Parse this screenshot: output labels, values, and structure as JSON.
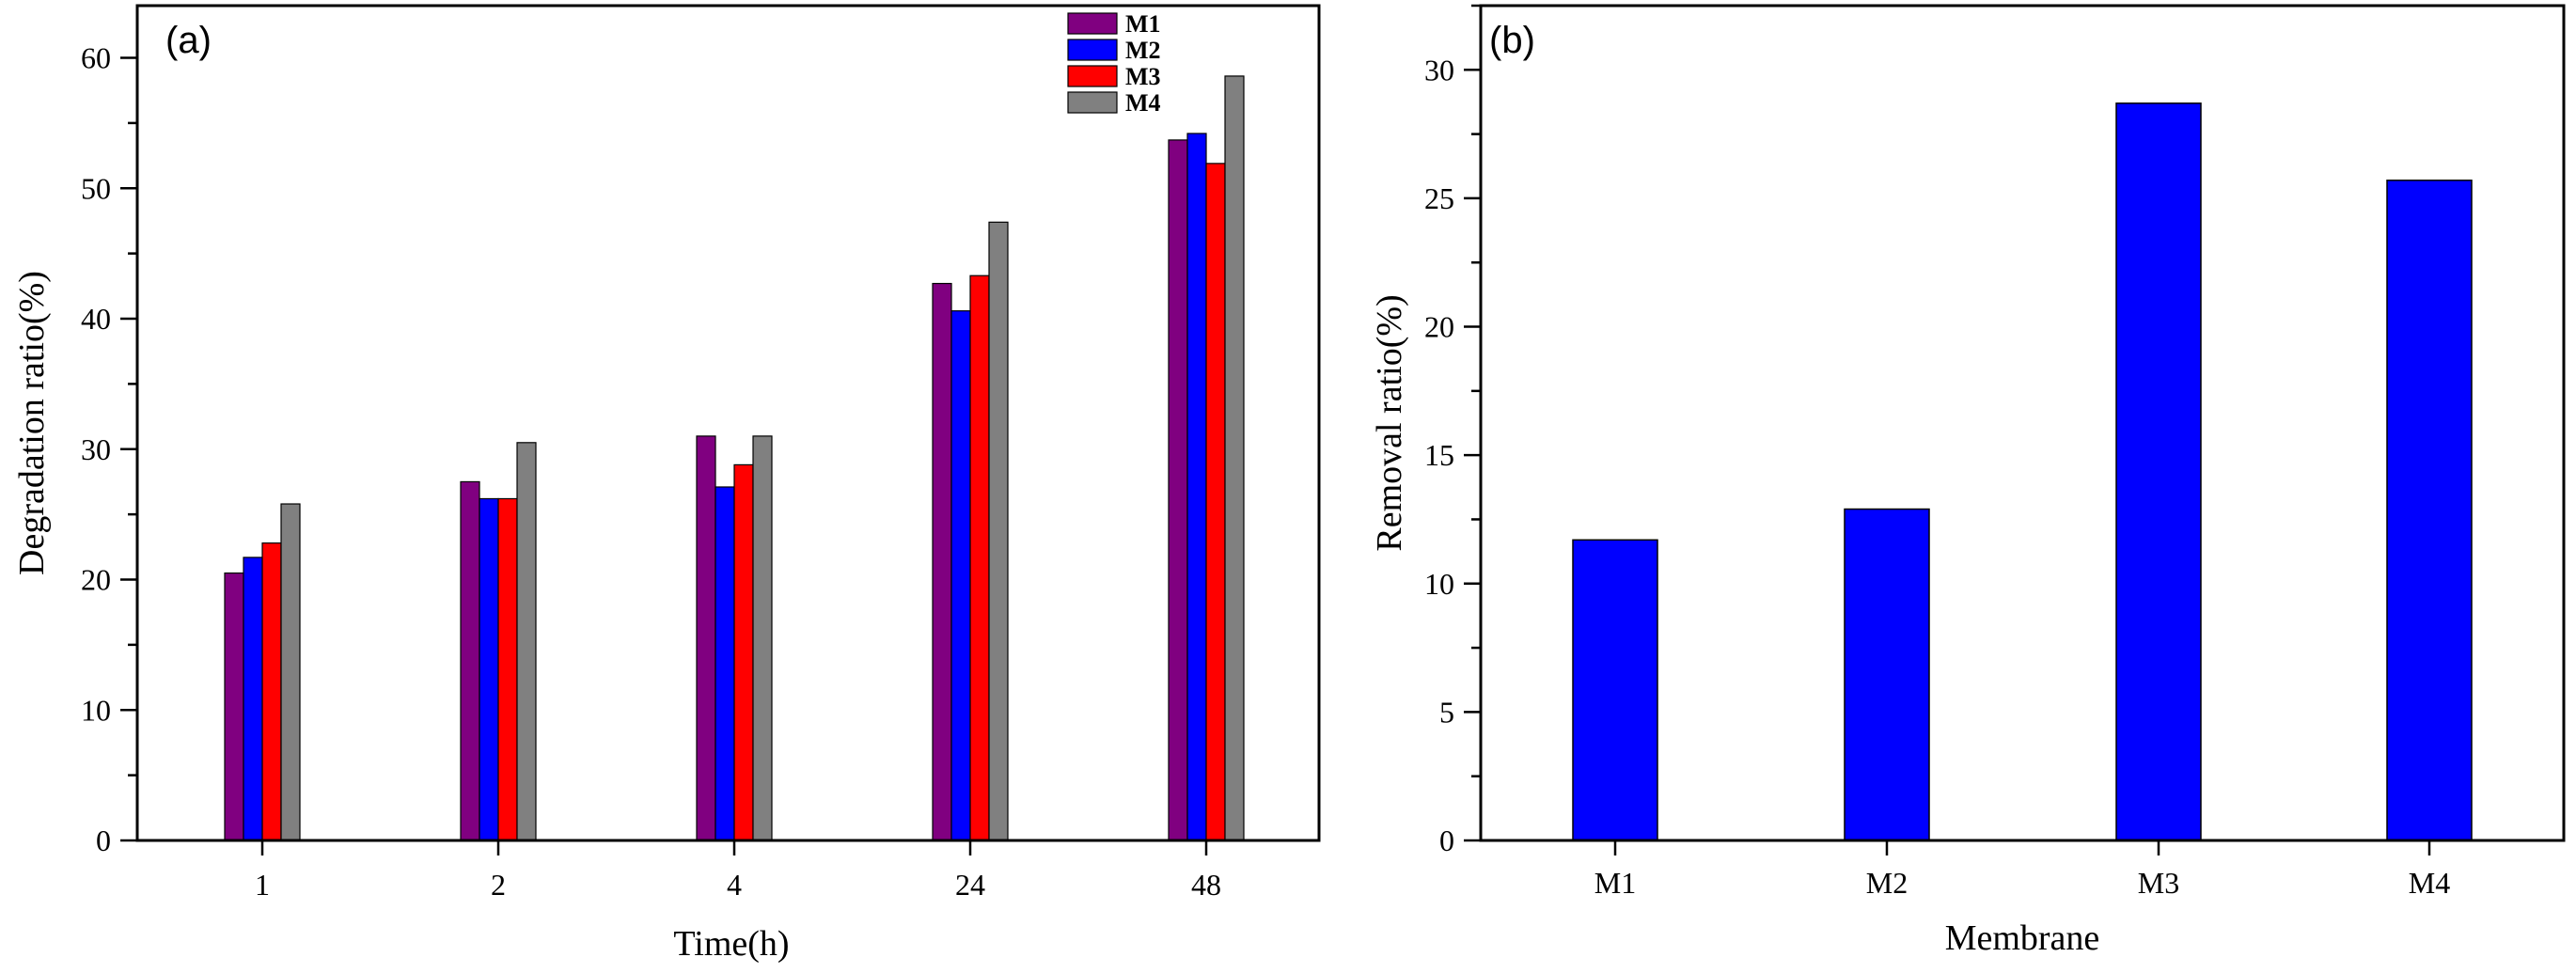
{
  "chart_data": [
    {
      "type": "bar",
      "panel_label": "(a)",
      "xlabel": "Time(h)",
      "ylabel": "Degradation ratio(%)",
      "categories": [
        "1",
        "2",
        "4",
        "24",
        "48"
      ],
      "ylim": [
        0,
        64
      ],
      "yticks": [
        0,
        10,
        20,
        30,
        40,
        50,
        60
      ],
      "legend_position": "top-right",
      "series": [
        {
          "name": "M1",
          "color": "#800080",
          "values": [
            20.5,
            27.5,
            31.0,
            42.7,
            53.7
          ]
        },
        {
          "name": "M2",
          "color": "#0000FF",
          "values": [
            21.7,
            26.2,
            27.1,
            40.6,
            54.2
          ]
        },
        {
          "name": "M3",
          "color": "#FF0000",
          "values": [
            22.8,
            26.2,
            28.8,
            43.3,
            51.9
          ]
        },
        {
          "name": "M4",
          "color": "#808080",
          "values": [
            25.8,
            30.5,
            31.0,
            47.4,
            58.6
          ]
        }
      ]
    },
    {
      "type": "bar",
      "panel_label": "(b)",
      "xlabel": "Membrane",
      "ylabel": "Removal ratio(%)",
      "categories": [
        "M1",
        "M2",
        "M3",
        "M4"
      ],
      "ylim": [
        0,
        32.5
      ],
      "yticks": [
        0,
        5,
        10,
        15,
        20,
        25,
        30
      ],
      "bar_color": "#0000FF",
      "values": [
        11.7,
        12.9,
        28.7,
        25.7
      ]
    }
  ]
}
